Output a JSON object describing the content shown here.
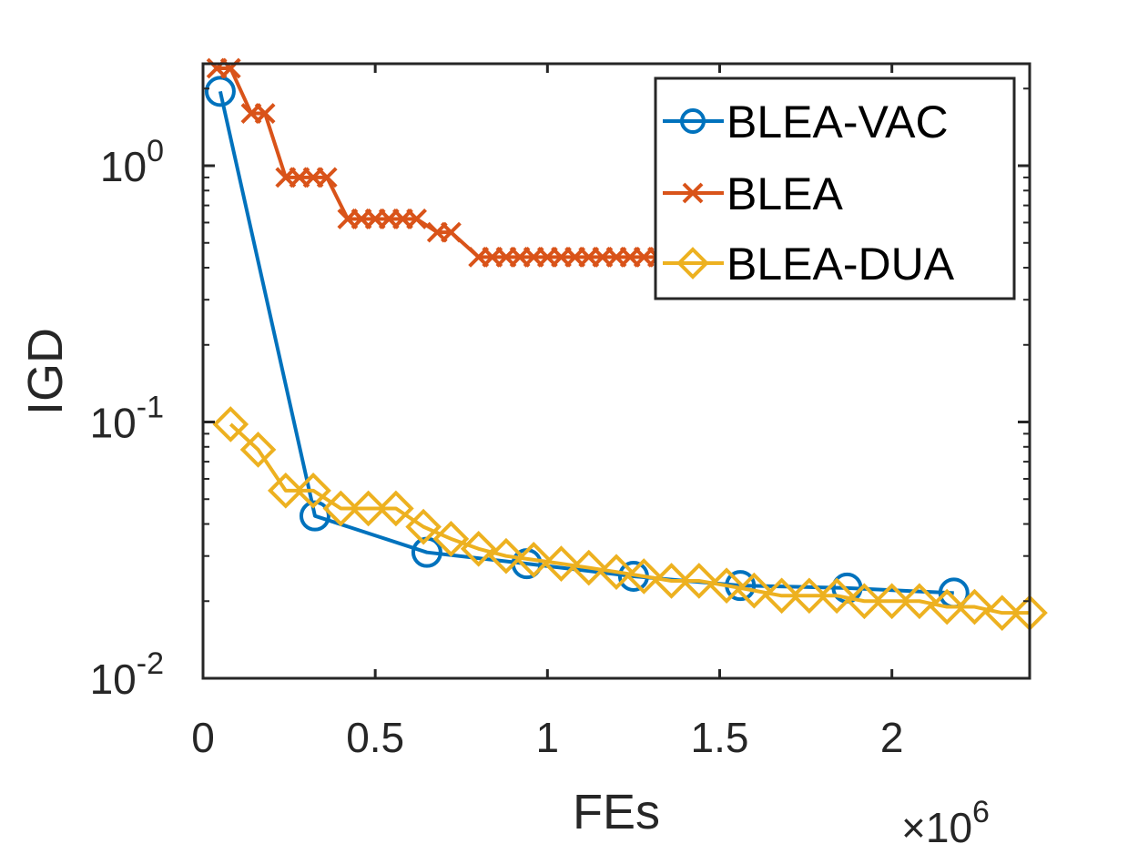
{
  "chart_data": {
    "type": "line",
    "title": "",
    "xlabel": "FEs",
    "ylabel": "IGD",
    "x_multiplier_label": "×10",
    "x_multiplier_exp": "6",
    "x_scale": 1000000,
    "xlim": [
      0,
      2400000
    ],
    "ylim": [
      0.01,
      2.5
    ],
    "yscale": "log",
    "x_ticks": [
      {
        "value": 0,
        "label": "0"
      },
      {
        "value": 500000,
        "label": "0.5"
      },
      {
        "value": 1000000,
        "label": "1"
      },
      {
        "value": 1500000,
        "label": "1.5"
      },
      {
        "value": 2000000,
        "label": "2"
      }
    ],
    "y_ticks": [
      {
        "value": 1,
        "base": "10",
        "exp": "0"
      },
      {
        "value": 0.1,
        "base": "10",
        "exp": "-1"
      },
      {
        "value": 0.01,
        "base": "10",
        "exp": "-2"
      }
    ],
    "grid": false,
    "legend_position": "top-right",
    "series": [
      {
        "name": "BLEA-VAC",
        "color": "#0072BD",
        "marker": "circle",
        "x": [
          50000,
          325000,
          650000,
          940000,
          1250000,
          1560000,
          1870000,
          2180000
        ],
        "y": [
          1.95,
          0.043,
          0.031,
          0.028,
          0.025,
          0.023,
          0.0225,
          0.0215
        ]
      },
      {
        "name": "BLEA",
        "color": "#D95319",
        "marker": "x",
        "x": [
          40000,
          80000,
          140000,
          180000,
          240000,
          280000,
          320000,
          360000,
          420000,
          460000,
          500000,
          540000,
          580000,
          620000,
          680000,
          720000,
          800000,
          840000,
          880000,
          920000,
          960000,
          1000000,
          1040000,
          1080000,
          1120000,
          1160000,
          1200000,
          1240000,
          1280000,
          1320000
        ],
        "y": [
          2.4,
          2.4,
          1.6,
          1.6,
          0.9,
          0.9,
          0.9,
          0.9,
          0.62,
          0.62,
          0.62,
          0.62,
          0.62,
          0.62,
          0.55,
          0.55,
          0.44,
          0.44,
          0.44,
          0.44,
          0.44,
          0.44,
          0.44,
          0.44,
          0.44,
          0.44,
          0.44,
          0.44,
          0.44,
          0.44
        ]
      },
      {
        "name": "BLEA-DUA",
        "color": "#EDB120",
        "marker": "diamond",
        "x": [
          80000,
          160000,
          240000,
          320000,
          400000,
          480000,
          560000,
          640000,
          720000,
          800000,
          880000,
          960000,
          1040000,
          1120000,
          1200000,
          1280000,
          1360000,
          1440000,
          1520000,
          1600000,
          1680000,
          1760000,
          1840000,
          1920000,
          2000000,
          2080000,
          2160000,
          2240000,
          2320000,
          2400000
        ],
        "y": [
          0.098,
          0.078,
          0.054,
          0.054,
          0.046,
          0.046,
          0.046,
          0.039,
          0.035,
          0.032,
          0.03,
          0.029,
          0.028,
          0.027,
          0.026,
          0.025,
          0.024,
          0.024,
          0.023,
          0.022,
          0.021,
          0.021,
          0.021,
          0.02,
          0.02,
          0.02,
          0.019,
          0.019,
          0.018,
          0.018
        ]
      }
    ]
  }
}
